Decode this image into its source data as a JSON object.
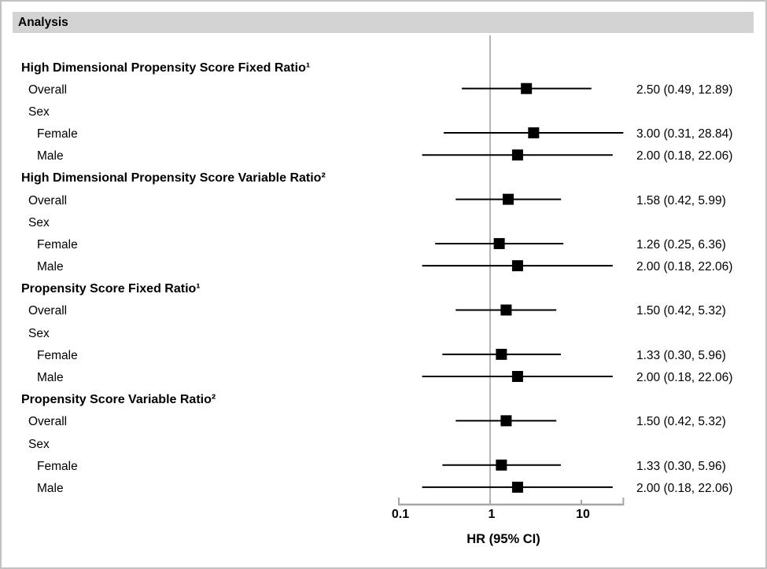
{
  "header": {
    "title": "Analysis"
  },
  "colors": {
    "header_bg": "#d3d3d3",
    "frame_border": "#c2c2c2",
    "axis_line": "#a6a6a6",
    "reference_line": "#b5b5b5",
    "ci_line": "#000000",
    "marker": "#000000",
    "text": "#000000"
  },
  "chart_data": {
    "type": "forest",
    "title": "Analysis",
    "xlabel": "HR (95% CI)",
    "xscale": "log10",
    "x_axis_range": [
      0.1,
      28.84
    ],
    "reference_value": 1,
    "grid": false,
    "xticks": [
      {
        "value": 0.1,
        "label": "0.1"
      },
      {
        "value": 1,
        "label": "1"
      },
      {
        "value": 10,
        "label": "10"
      }
    ],
    "rows": [
      {
        "kind": "group",
        "indent": 0,
        "label": "High Dimensional Propensity Score Fixed Ratio¹"
      },
      {
        "kind": "item",
        "indent": 1,
        "label": "Overall",
        "hr": 2.5,
        "lo": 0.49,
        "hi": 12.89,
        "text": "2.50 (0.49, 12.89)"
      },
      {
        "kind": "item",
        "indent": 1,
        "label": "Sex"
      },
      {
        "kind": "item",
        "indent": 2,
        "label": "Female",
        "hr": 3.0,
        "lo": 0.31,
        "hi": 28.84,
        "text": "3.00 (0.31, 28.84)"
      },
      {
        "kind": "item",
        "indent": 2,
        "label": "Male",
        "hr": 2.0,
        "lo": 0.18,
        "hi": 22.06,
        "text": "2.00 (0.18, 22.06)"
      },
      {
        "kind": "group",
        "indent": 0,
        "label": "High Dimensional Propensity Score Variable Ratio²"
      },
      {
        "kind": "item",
        "indent": 1,
        "label": "Overall",
        "hr": 1.58,
        "lo": 0.42,
        "hi": 5.99,
        "text": "1.58 (0.42, 5.99)"
      },
      {
        "kind": "item",
        "indent": 1,
        "label": "Sex"
      },
      {
        "kind": "item",
        "indent": 2,
        "label": "Female",
        "hr": 1.26,
        "lo": 0.25,
        "hi": 6.36,
        "text": "1.26 (0.25, 6.36)"
      },
      {
        "kind": "item",
        "indent": 2,
        "label": "Male",
        "hr": 2.0,
        "lo": 0.18,
        "hi": 22.06,
        "text": "2.00 (0.18, 22.06)"
      },
      {
        "kind": "group",
        "indent": 0,
        "label": "Propensity Score Fixed Ratio¹"
      },
      {
        "kind": "item",
        "indent": 1,
        "label": "Overall",
        "hr": 1.5,
        "lo": 0.42,
        "hi": 5.32,
        "text": "1.50 (0.42, 5.32)"
      },
      {
        "kind": "item",
        "indent": 1,
        "label": "Sex"
      },
      {
        "kind": "item",
        "indent": 2,
        "label": "Female",
        "hr": 1.33,
        "lo": 0.3,
        "hi": 5.96,
        "text": "1.33 (0.30, 5.96)"
      },
      {
        "kind": "item",
        "indent": 2,
        "label": "Male",
        "hr": 2.0,
        "lo": 0.18,
        "hi": 22.06,
        "text": "2.00 (0.18, 22.06)"
      },
      {
        "kind": "group",
        "indent": 0,
        "label": "Propensity Score Variable Ratio²"
      },
      {
        "kind": "item",
        "indent": 1,
        "label": "Overall",
        "hr": 1.5,
        "lo": 0.42,
        "hi": 5.32,
        "text": "1.50 (0.42, 5.32)"
      },
      {
        "kind": "item",
        "indent": 1,
        "label": "Sex"
      },
      {
        "kind": "item",
        "indent": 2,
        "label": "Female",
        "hr": 1.33,
        "lo": 0.3,
        "hi": 5.96,
        "text": "1.33 (0.30, 5.96)"
      },
      {
        "kind": "item",
        "indent": 2,
        "label": "Male",
        "hr": 2.0,
        "lo": 0.18,
        "hi": 22.06,
        "text": "2.00 (0.18, 22.06)"
      }
    ]
  }
}
